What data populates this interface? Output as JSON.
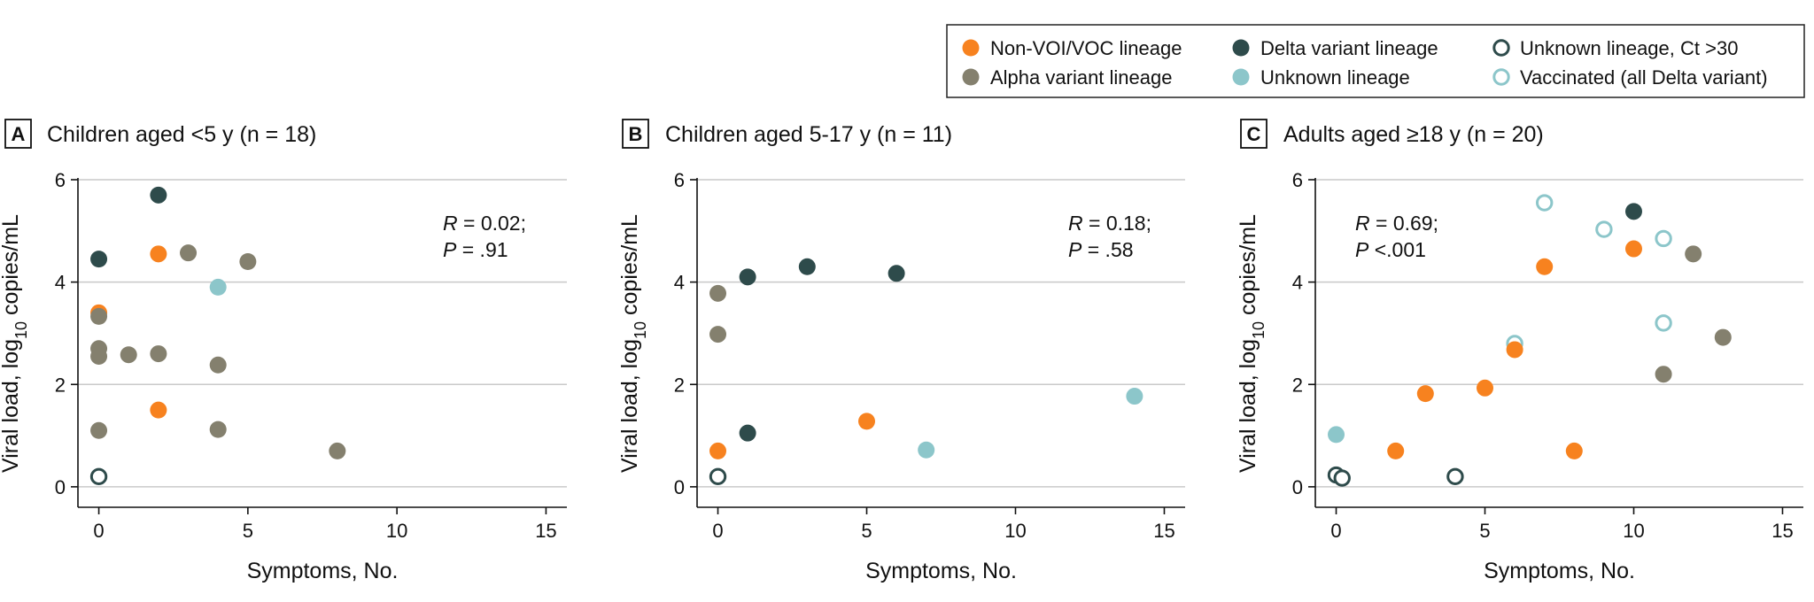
{
  "legend": {
    "entries": [
      {
        "key": "nonvoi",
        "label": "Non-VOI/VOC lineage",
        "color": "#f7821f",
        "hollow": false
      },
      {
        "key": "alpha",
        "label": "Alpha variant lineage",
        "color": "#84806e",
        "hollow": false
      },
      {
        "key": "delta",
        "label": "Delta variant lineage",
        "color": "#2e4b4b",
        "hollow": false
      },
      {
        "key": "unknown",
        "label": "Unknown lineage",
        "color": "#8cc6ca",
        "hollow": false
      },
      {
        "key": "unknown_ct30",
        "label": "Unknown lineage, Ct >30",
        "color": "#2e4b4b",
        "hollow": true
      },
      {
        "key": "vaccinated",
        "label": "Vaccinated (all Delta variant)",
        "color": "#8cc6ca",
        "hollow": true
      }
    ]
  },
  "chart_data": [
    {
      "type": "scatter",
      "letter": "A",
      "title": "Children aged <5 y (n = 18)",
      "xlabel": "Symptoms, No.",
      "ylabel": "Viral load, log10 copies/mL",
      "xlim": [
        -0.7,
        15.7
      ],
      "ylim": [
        -0.4,
        6
      ],
      "xticks": [
        0,
        5,
        10,
        15
      ],
      "yticks": [
        0,
        2,
        4,
        6
      ],
      "grid": true,
      "stats": {
        "r_label": "R",
        "r_value": " = 0.02;",
        "p_label": "P",
        "p_value": " = .91"
      },
      "points": [
        {
          "x": 0,
          "y": 4.45,
          "group": "delta"
        },
        {
          "x": 2,
          "y": 5.7,
          "group": "delta"
        },
        {
          "x": 2,
          "y": 4.55,
          "group": "nonvoi"
        },
        {
          "x": 3,
          "y": 4.57,
          "group": "alpha"
        },
        {
          "x": 5,
          "y": 4.4,
          "group": "alpha"
        },
        {
          "x": 4,
          "y": 3.9,
          "group": "unknown"
        },
        {
          "x": 0,
          "y": 3.4,
          "group": "nonvoi"
        },
        {
          "x": 0,
          "y": 3.33,
          "group": "alpha"
        },
        {
          "x": 0,
          "y": 2.7,
          "group": "alpha"
        },
        {
          "x": 0,
          "y": 2.55,
          "group": "alpha"
        },
        {
          "x": 1,
          "y": 2.58,
          "group": "alpha"
        },
        {
          "x": 2,
          "y": 2.6,
          "group": "alpha"
        },
        {
          "x": 4,
          "y": 2.38,
          "group": "alpha"
        },
        {
          "x": 2,
          "y": 1.5,
          "group": "nonvoi"
        },
        {
          "x": 0,
          "y": 1.1,
          "group": "alpha"
        },
        {
          "x": 4,
          "y": 1.12,
          "group": "alpha"
        },
        {
          "x": 8,
          "y": 0.7,
          "group": "alpha"
        },
        {
          "x": 0,
          "y": 0.2,
          "group": "unknown_ct30"
        }
      ]
    },
    {
      "type": "scatter",
      "letter": "B",
      "title": "Children aged 5-17 y (n = 11)",
      "xlabel": "Symptoms, No.",
      "ylabel": "Viral load, log10 copies/mL",
      "xlim": [
        -0.7,
        15.7
      ],
      "ylim": [
        -0.4,
        6
      ],
      "xticks": [
        0,
        5,
        10,
        15
      ],
      "yticks": [
        0,
        2,
        4,
        6
      ],
      "grid": true,
      "stats": {
        "r_label": "R",
        "r_value": " = 0.18;",
        "p_label": "P",
        "p_value": " = .58"
      },
      "points": [
        {
          "x": 0,
          "y": 3.78,
          "group": "alpha"
        },
        {
          "x": 0,
          "y": 2.98,
          "group": "alpha"
        },
        {
          "x": 1,
          "y": 4.1,
          "group": "delta"
        },
        {
          "x": 3,
          "y": 4.3,
          "group": "delta"
        },
        {
          "x": 6,
          "y": 4.17,
          "group": "delta"
        },
        {
          "x": 14,
          "y": 1.77,
          "group": "unknown"
        },
        {
          "x": 5,
          "y": 1.28,
          "group": "nonvoi"
        },
        {
          "x": 1,
          "y": 1.05,
          "group": "delta"
        },
        {
          "x": 7,
          "y": 0.72,
          "group": "unknown"
        },
        {
          "x": 0,
          "y": 0.7,
          "group": "nonvoi"
        },
        {
          "x": 0,
          "y": 0.2,
          "group": "unknown_ct30"
        }
      ]
    },
    {
      "type": "scatter",
      "letter": "C",
      "title": "Adults aged ≥18 y (n = 20)",
      "xlabel": "Symptoms, No.",
      "ylabel": "Viral load, log10 copies/mL",
      "xlim": [
        -0.7,
        15.7
      ],
      "ylim": [
        -0.4,
        6
      ],
      "xticks": [
        0,
        5,
        10,
        15
      ],
      "yticks": [
        0,
        2,
        4,
        6
      ],
      "grid": true,
      "stats": {
        "r_label": "R",
        "r_value": " = 0.69;",
        "p_label": "P",
        "p_value": " <.001"
      },
      "points": [
        {
          "x": 7,
          "y": 5.55,
          "group": "vaccinated"
        },
        {
          "x": 10,
          "y": 5.38,
          "group": "delta"
        },
        {
          "x": 9,
          "y": 5.03,
          "group": "vaccinated"
        },
        {
          "x": 11,
          "y": 4.85,
          "group": "vaccinated"
        },
        {
          "x": 10,
          "y": 4.65,
          "group": "nonvoi"
        },
        {
          "x": 12,
          "y": 4.55,
          "group": "alpha"
        },
        {
          "x": 7,
          "y": 4.3,
          "group": "nonvoi"
        },
        {
          "x": 11,
          "y": 3.2,
          "group": "vaccinated"
        },
        {
          "x": 13,
          "y": 2.92,
          "group": "alpha"
        },
        {
          "x": 6,
          "y": 2.8,
          "group": "vaccinated"
        },
        {
          "x": 6,
          "y": 2.68,
          "group": "nonvoi"
        },
        {
          "x": 11,
          "y": 2.2,
          "group": "alpha"
        },
        {
          "x": 5,
          "y": 1.93,
          "group": "nonvoi"
        },
        {
          "x": 3,
          "y": 1.82,
          "group": "nonvoi"
        },
        {
          "x": 0,
          "y": 1.02,
          "group": "unknown"
        },
        {
          "x": 2,
          "y": 0.7,
          "group": "nonvoi"
        },
        {
          "x": 8,
          "y": 0.7,
          "group": "nonvoi"
        },
        {
          "x": 0,
          "y": 0.23,
          "group": "unknown_ct30"
        },
        {
          "x": 0.2,
          "y": 0.17,
          "group": "unknown_ct30"
        },
        {
          "x": 4,
          "y": 0.2,
          "group": "unknown_ct30"
        }
      ]
    }
  ]
}
